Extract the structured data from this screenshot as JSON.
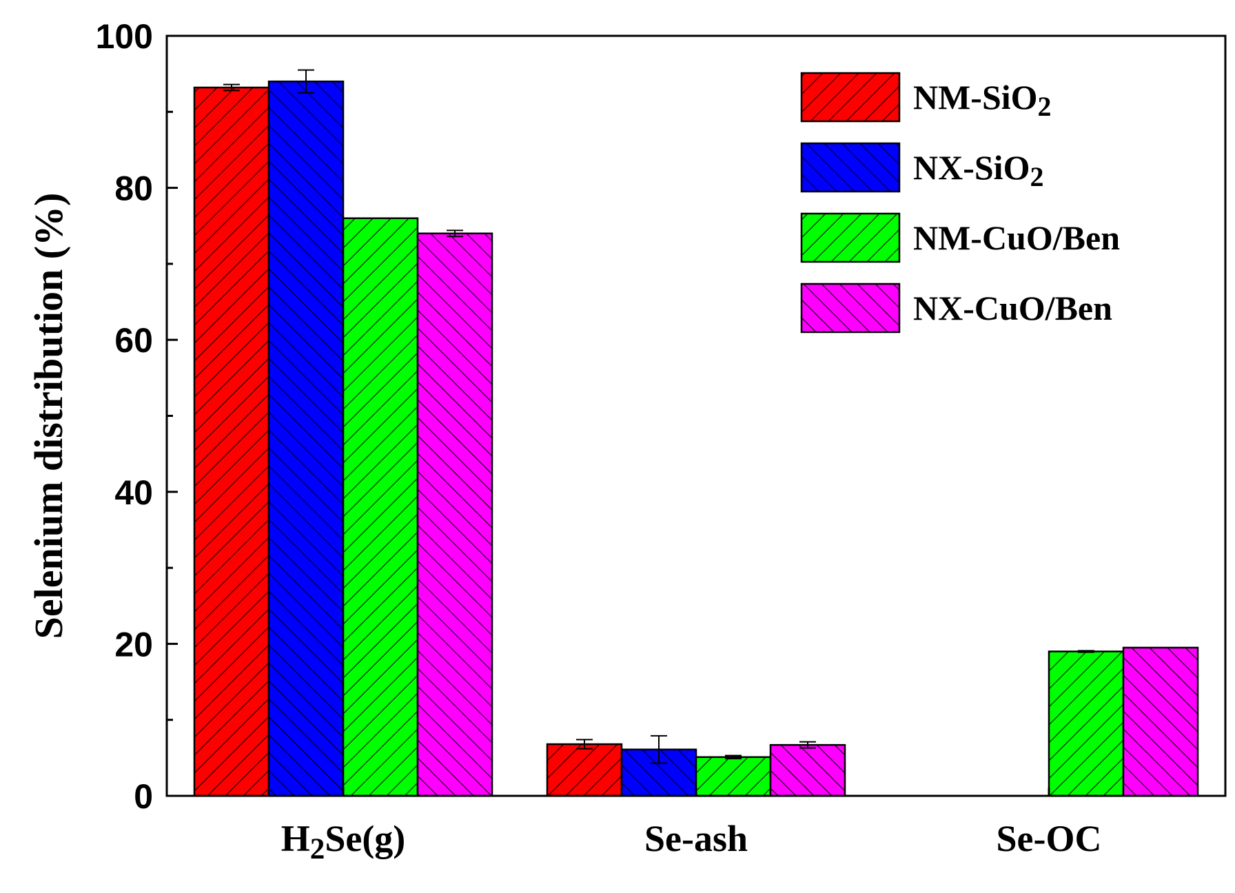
{
  "chart_data": {
    "type": "bar",
    "title": "",
    "xlabel": "",
    "ylabel": "Selenium distribution (%)",
    "ylim": [
      0,
      100
    ],
    "yticks": [
      "0",
      "20",
      "40",
      "60",
      "80",
      "100"
    ],
    "grid": false,
    "legend_position": "top-right",
    "categories": [
      {
        "base": "H",
        "sub": "2",
        "rest": "Se(g)"
      },
      {
        "base": "Se-ash",
        "sub": "",
        "rest": ""
      },
      {
        "base": "Se-OC",
        "sub": "",
        "rest": ""
      }
    ],
    "series": [
      {
        "name": {
          "base": "NM-SiO",
          "sub": "2"
        },
        "color": "#ff0000",
        "hatch": "forward",
        "values": [
          93.2,
          6.8,
          null
        ],
        "errors": [
          0.4,
          0.6,
          null
        ]
      },
      {
        "name": {
          "base": "NX-SiO",
          "sub": "2"
        },
        "color": "#0000ff",
        "hatch": "backward",
        "values": [
          94.0,
          6.1,
          null
        ],
        "errors": [
          1.5,
          1.8,
          null
        ]
      },
      {
        "name": {
          "base": "NM-CuO/Ben",
          "sub": ""
        },
        "color": "#00ff00",
        "hatch": "forward",
        "values": [
          76.0,
          5.1,
          19.0
        ],
        "errors": [
          0.0,
          0.2,
          0.1
        ]
      },
      {
        "name": {
          "base": "NX-CuO/Ben",
          "sub": ""
        },
        "color": "#ff00ff",
        "hatch": "backward",
        "values": [
          74.0,
          6.7,
          19.5
        ],
        "errors": [
          0.4,
          0.4,
          0.0
        ]
      }
    ]
  }
}
